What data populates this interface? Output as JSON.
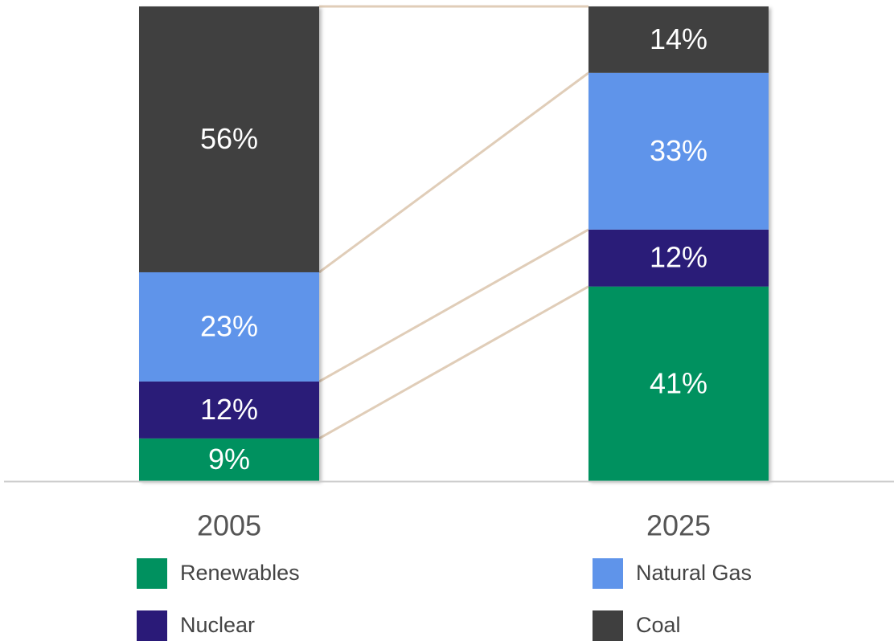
{
  "chart_data": {
    "type": "stacked-bar",
    "categories": [
      "2005",
      "2025"
    ],
    "ylim": [
      0,
      100
    ],
    "series": [
      {
        "name": "Renewables",
        "color": "#00915f",
        "values": [
          9,
          41
        ],
        "value_labels": [
          "9%",
          "41%"
        ]
      },
      {
        "name": "Nuclear",
        "color": "#2a1a78",
        "values": [
          12,
          12
        ],
        "value_labels": [
          "12%",
          "12%"
        ]
      },
      {
        "name": "Natural Gas",
        "color": "#5f94ea",
        "values": [
          23,
          33
        ],
        "value_labels": [
          "23%",
          "33%"
        ]
      },
      {
        "name": "Coal",
        "color": "#3f3f3f",
        "values": [
          56,
          14
        ],
        "value_labels": [
          "56%",
          "14%"
        ]
      }
    ]
  }
}
